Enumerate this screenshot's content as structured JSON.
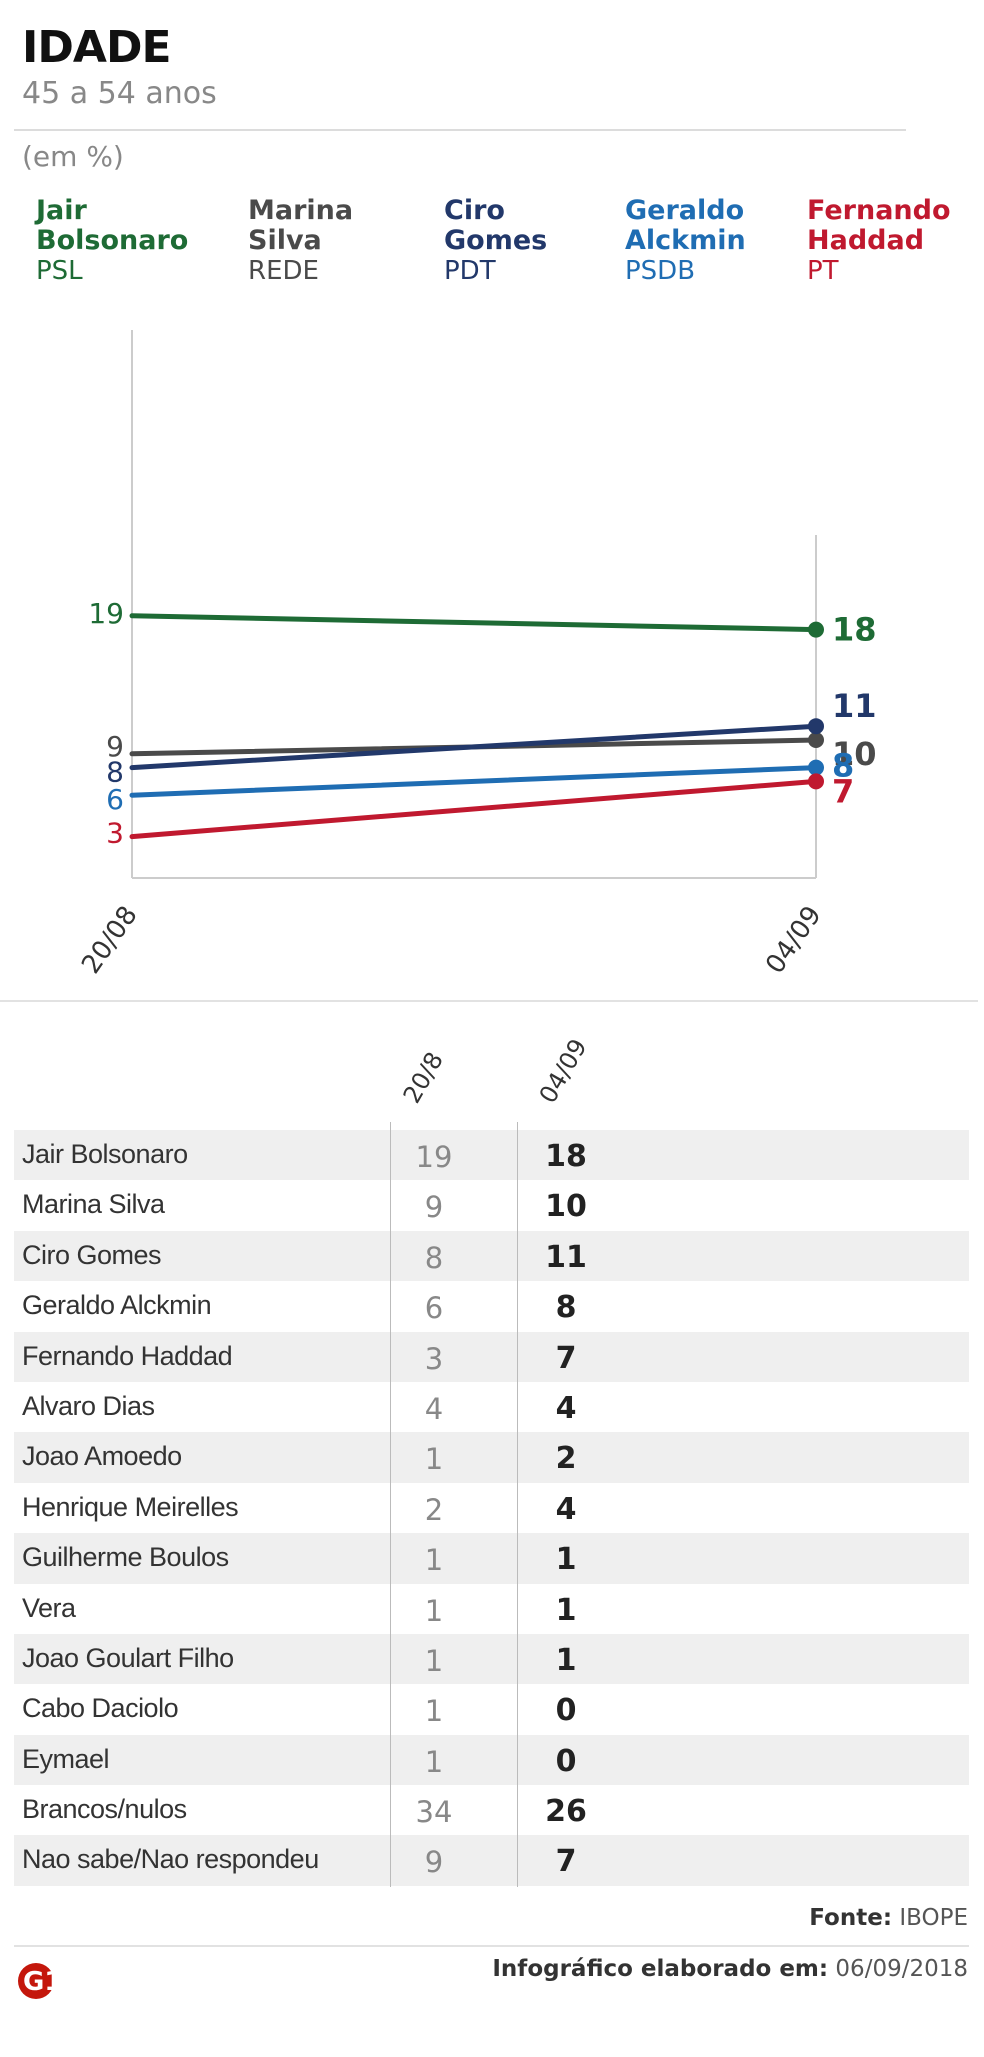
{
  "header": {
    "title": "IDADE",
    "subtitle": "45 a 54 anos",
    "unit": "(em %)"
  },
  "legend": [
    {
      "name_line1": "Jair",
      "name_line2": "Bolsonaro",
      "party": "PSL",
      "color": "#1e6b35"
    },
    {
      "name_line1": "Marina",
      "name_line2": "Silva",
      "party": "REDE",
      "color": "#4a4a4a"
    },
    {
      "name_line1": "Ciro",
      "name_line2": "Gomes",
      "party": "PDT",
      "color": "#22386a"
    },
    {
      "name_line1": "Geraldo",
      "name_line2": "Alckmin",
      "party": "PSDB",
      "color": "#1f6db3"
    },
    {
      "name_line1": "Fernando",
      "name_line2": "Haddad",
      "party": "PT",
      "color": "#c0192f"
    }
  ],
  "chart_data": {
    "type": "line",
    "x": [
      "20/08",
      "04/09"
    ],
    "ylim": [
      0,
      30
    ],
    "grid": false,
    "series": [
      {
        "name": "Jair Bolsonaro",
        "values": [
          19,
          18
        ],
        "color": "#1e6b35"
      },
      {
        "name": "Marina Silva",
        "values": [
          9,
          10
        ],
        "color": "#4a4a4a"
      },
      {
        "name": "Ciro Gomes",
        "values": [
          8,
          11
        ],
        "color": "#22386a"
      },
      {
        "name": "Geraldo Alckmin",
        "values": [
          6,
          8
        ],
        "color": "#1f6db3"
      },
      {
        "name": "Fernando Haddad",
        "values": [
          3,
          7
        ],
        "color": "#c0192f"
      }
    ]
  },
  "table": {
    "columns": [
      "20/8",
      "04/09"
    ],
    "rows": [
      {
        "name": "Jair Bolsonaro",
        "v1": "19",
        "v2": "18"
      },
      {
        "name": "Marina Silva",
        "v1": "9",
        "v2": "10"
      },
      {
        "name": "Ciro Gomes",
        "v1": "8",
        "v2": "11"
      },
      {
        "name": "Geraldo Alckmin",
        "v1": "6",
        "v2": "8"
      },
      {
        "name": "Fernando Haddad",
        "v1": "3",
        "v2": "7"
      },
      {
        "name": "Alvaro Dias",
        "v1": "4",
        "v2": "4"
      },
      {
        "name": "Joao Amoedo",
        "v1": "1",
        "v2": "2"
      },
      {
        "name": "Henrique Meirelles",
        "v1": "2",
        "v2": "4"
      },
      {
        "name": "Guilherme Boulos",
        "v1": "1",
        "v2": "1"
      },
      {
        "name": "Vera",
        "v1": "1",
        "v2": "1"
      },
      {
        "name": "Joao Goulart Filho",
        "v1": "1",
        "v2": "1"
      },
      {
        "name": "Cabo Daciolo",
        "v1": "1",
        "v2": "0"
      },
      {
        "name": "Eymael",
        "v1": "1",
        "v2": "0"
      },
      {
        "name": "Brancos/nulos",
        "v1": "34",
        "v2": "26"
      },
      {
        "name": "Nao sabe/Nao respondeu",
        "v1": "9",
        "v2": "7"
      }
    ]
  },
  "footer": {
    "source_label": "Fonte:",
    "source_value": "IBOPE",
    "credit_label": "Infográfico elaborado em:",
    "credit_date": "06/09/2018",
    "logo_text": "G1",
    "logo_color": "#c4170c"
  }
}
